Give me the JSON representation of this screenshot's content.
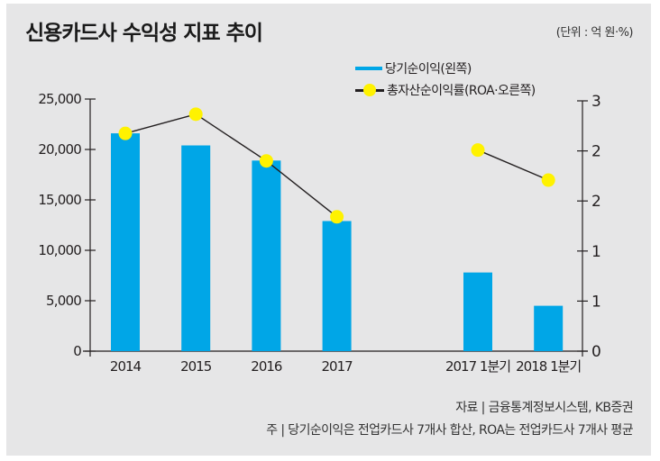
{
  "header": {
    "title": "신용카드사 수익성 지표 추이",
    "unit": "(단위 : 억 원·%)"
  },
  "legend": {
    "items": [
      {
        "label": "당기순이익(왼쪽)",
        "type": "bar",
        "color": "#00a6e7"
      },
      {
        "label": "총자산순이익률(ROA·오른쪽)",
        "type": "line",
        "color": "#fff200",
        "line_color": "#231f20"
      }
    ]
  },
  "footer": {
    "source": "자료 | 금융통계정보시스템, KB증권",
    "note": "주 | 당기순이익은 전업카드사 7개사 합산, ROA는 전업카드사 7개사 평균"
  },
  "colors": {
    "background": "#e6e6e7",
    "bar": "#00a6e7",
    "marker": "#fff200",
    "line": "#231f20",
    "axis": "#231f20"
  },
  "chart_data": {
    "type": "bar+line",
    "title": "신용카드사 수익성 지표 추이",
    "unit": "억 원·%",
    "categories": [
      "2014",
      "2015",
      "2016",
      "2017",
      "2017 1분기",
      "2018 1분기"
    ],
    "category_slots": [
      0,
      1,
      2,
      3,
      5,
      6
    ],
    "series": [
      {
        "name": "당기순이익(왼쪽)",
        "type": "bar",
        "axis": "left",
        "values": [
          21600,
          20400,
          18900,
          12900,
          7800,
          4500
        ]
      },
      {
        "name": "총자산순이익률(ROA·오른쪽)",
        "type": "line",
        "axis": "right",
        "values": [
          2.61,
          2.84,
          2.28,
          1.61,
          2.41,
          2.05
        ],
        "line_segments": [
          [
            0,
            1,
            2,
            3
          ],
          [
            4,
            5
          ]
        ]
      }
    ],
    "left_axis": {
      "ylim": [
        0,
        25000
      ],
      "ticks": [
        0,
        5000,
        10000,
        15000,
        20000,
        25000
      ],
      "tick_labels": [
        "0",
        "5,000",
        "10,000",
        "15,000",
        "20,000",
        "25,000"
      ]
    },
    "right_axis": {
      "ylim": [
        0,
        3
      ],
      "ticks": [
        0,
        0.6,
        1.2,
        1.8,
        2.4,
        3.0
      ],
      "tick_labels": [
        "0",
        "1",
        "1",
        "2",
        "2",
        "3"
      ]
    },
    "grid": false,
    "legend_position": "top-right"
  }
}
